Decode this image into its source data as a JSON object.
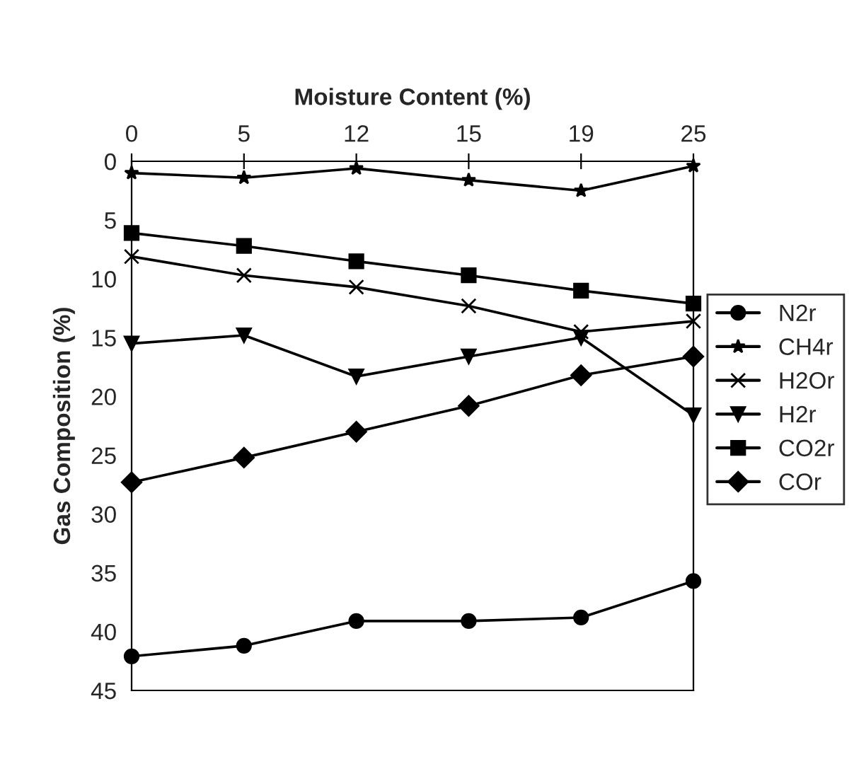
{
  "chart_data": {
    "type": "line",
    "xlabel": "Moisture Content (%)",
    "ylabel": "Gas Composition (%)",
    "categories": [
      "0",
      "5",
      "12",
      "15",
      "19",
      "25"
    ],
    "ylim": [
      45,
      0
    ],
    "yticks": [
      0,
      5,
      10,
      15,
      20,
      25,
      30,
      35,
      40,
      45
    ],
    "grid": false,
    "legend": "right",
    "series": [
      {
        "name": "N2r",
        "color": "#000000",
        "marker": "circle",
        "values": [
          42.1,
          41.2,
          39.1,
          39.1,
          38.8,
          35.7
        ]
      },
      {
        "name": "CH4r",
        "color": "#000000",
        "marker": "star",
        "values": [
          1.0,
          1.4,
          0.6,
          1.6,
          2.5,
          0.4
        ]
      },
      {
        "name": "H2Or",
        "color": "#000000",
        "marker": "cross",
        "values": [
          8.1,
          9.7,
          10.7,
          12.3,
          14.5,
          13.6
        ]
      },
      {
        "name": "H2r",
        "color": "#000000",
        "marker": "triangle",
        "values": [
          15.5,
          14.8,
          18.3,
          16.6,
          15.0,
          21.6
        ]
      },
      {
        "name": "CO2r",
        "color": "#000000",
        "marker": "square",
        "values": [
          6.1,
          7.2,
          8.5,
          9.7,
          11.0,
          12.1
        ]
      },
      {
        "name": "COr",
        "color": "#000000",
        "marker": "diamond",
        "values": [
          27.3,
          25.2,
          23.0,
          20.8,
          18.2,
          16.6
        ]
      }
    ]
  }
}
